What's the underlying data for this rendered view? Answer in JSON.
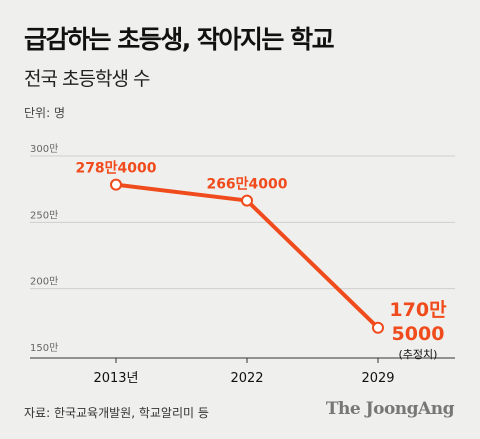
{
  "title": "급감하는 초등생, 작아지는 학교",
  "subtitle": "전국 초등학생 수",
  "unit_label": "단위: 명",
  "source": "자료: 한국교육개발원, 학교알리미 등",
  "logo": "The JoongAng",
  "colors": {
    "background": "#efefed",
    "accent": "#f04b1c",
    "grid": "#cfcfcf",
    "text": "#111111"
  },
  "chart_data": {
    "type": "line",
    "categories": [
      "2013년",
      "2022",
      "2029"
    ],
    "values": [
      2784000,
      2664000,
      1705000
    ],
    "data_labels": [
      "278만4000",
      "266만4000",
      "170만 5000"
    ],
    "annotations": [
      "(추정치)"
    ],
    "y_ticks": [
      {
        "value": 3000000,
        "label": "300만"
      },
      {
        "value": 2500000,
        "label": "250만"
      },
      {
        "value": 2000000,
        "label": "200만"
      },
      {
        "value": 1500000,
        "label": "150만"
      }
    ],
    "ylim": [
      1500000,
      3000000
    ],
    "grid": true,
    "xlabel": "",
    "ylabel": ""
  }
}
